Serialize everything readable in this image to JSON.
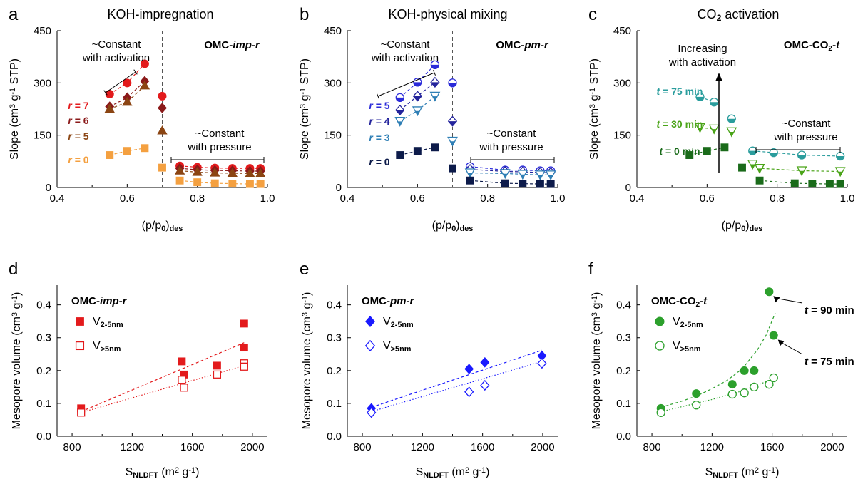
{
  "chart_data": [
    {
      "panel": "a",
      "type": "scatter",
      "title": "KOH-impregnation",
      "xlabel": "(p/p0)des",
      "ylabel": "Slope (cm3 g-1 STP)",
      "xlim": [
        0.4,
        1.0
      ],
      "ylim": [
        0,
        450
      ],
      "xticks": [
        "0.4",
        "0.6",
        "0.8",
        "1.0"
      ],
      "yticks": [
        "0",
        "150",
        "300",
        "450"
      ],
      "divider_x": 0.7,
      "tag": "OMC-imp-r",
      "annotations": [
        "~Constant",
        "with activation",
        "~Constant",
        "with pressure"
      ],
      "series": [
        {
          "name": "r = 7",
          "color": "#e31a1c",
          "marker": "circle",
          "x": [
            0.55,
            0.6,
            0.65,
            0.7,
            0.75,
            0.8,
            0.85,
            0.9,
            0.95,
            0.98
          ],
          "y": [
            268,
            300,
            355,
            262,
            62,
            58,
            56,
            55,
            55,
            55
          ]
        },
        {
          "name": "r = 6",
          "color": "#8b1a1a",
          "marker": "diamond",
          "x": [
            0.55,
            0.6,
            0.65,
            0.7,
            0.75,
            0.8,
            0.85,
            0.9,
            0.95,
            0.98
          ],
          "y": [
            232,
            258,
            305,
            228,
            55,
            51,
            49,
            48,
            47,
            47
          ]
        },
        {
          "name": "r = 5",
          "color": "#8b4513",
          "marker": "triangle",
          "x": [
            0.55,
            0.6,
            0.65,
            0.7,
            0.75,
            0.8,
            0.85,
            0.9,
            0.95,
            0.98
          ],
          "y": [
            225,
            245,
            292,
            163,
            48,
            44,
            42,
            41,
            40,
            40
          ]
        },
        {
          "name": "r = 0",
          "color": "#f4a040",
          "marker": "square",
          "x": [
            0.55,
            0.6,
            0.65,
            0.7,
            0.75,
            0.8,
            0.85,
            0.9,
            0.95,
            0.98
          ],
          "y": [
            93,
            105,
            113,
            57,
            20,
            15,
            12,
            11,
            10,
            10
          ]
        }
      ]
    },
    {
      "panel": "b",
      "type": "scatter",
      "title": "KOH-physical mixing",
      "xlabel": "(p/p0)des",
      "ylabel": "Slope (cm3 g-1 STP)",
      "xlim": [
        0.4,
        1.0
      ],
      "ylim": [
        0,
        450
      ],
      "xticks": [
        "0.4",
        "0.6",
        "0.8",
        "1.0"
      ],
      "yticks": [
        "0",
        "150",
        "300",
        "450"
      ],
      "divider_x": 0.7,
      "tag": "OMC-pm-r",
      "annotations": [
        "~Constant",
        "with activation",
        "~Constant",
        "with pressure"
      ],
      "series": [
        {
          "name": "r = 5",
          "color": "#2b2bd9",
          "marker": "half-circle",
          "x": [
            0.55,
            0.6,
            0.65,
            0.7,
            0.75,
            0.85,
            0.9,
            0.95,
            0.98
          ],
          "y": [
            258,
            302,
            352,
            300,
            60,
            50,
            50,
            48,
            48
          ]
        },
        {
          "name": "r = 4",
          "color": "#24249c",
          "marker": "half-diamond",
          "x": [
            0.55,
            0.6,
            0.65,
            0.7,
            0.75,
            0.85,
            0.9,
            0.95,
            0.98
          ],
          "y": [
            222,
            262,
            302,
            190,
            52,
            46,
            45,
            43,
            43
          ]
        },
        {
          "name": "r = 3",
          "color": "#2f7fb5",
          "marker": "half-triangle",
          "x": [
            0.55,
            0.6,
            0.65,
            0.7,
            0.75,
            0.85,
            0.9,
            0.95,
            0.98
          ],
          "y": [
            190,
            220,
            262,
            133,
            42,
            40,
            38,
            36,
            36
          ]
        },
        {
          "name": "r = 0",
          "color": "#0d1b4a",
          "marker": "square",
          "x": [
            0.55,
            0.6,
            0.65,
            0.7,
            0.75,
            0.85,
            0.9,
            0.95,
            0.98
          ],
          "y": [
            93,
            105,
            115,
            55,
            20,
            12,
            11,
            10,
            10
          ]
        }
      ]
    },
    {
      "panel": "c",
      "type": "scatter",
      "title": "CO2 activation",
      "xlabel": "(p/p0)des",
      "ylabel": "Slope (cm3 g-1 STP)",
      "xlim": [
        0.4,
        1.0
      ],
      "ylim": [
        0,
        450
      ],
      "xticks": [
        "0.4",
        "0.6",
        "0.8",
        "1.0"
      ],
      "yticks": [
        "0",
        "150",
        "300",
        "450"
      ],
      "divider_x": 0.7,
      "tag": "OMC-CO2-t",
      "annotations": [
        "Increasing",
        "with activation",
        "~Constant",
        "with pressure"
      ],
      "series": [
        {
          "name": "t = 75 min",
          "color": "#2a9d9d",
          "marker": "half-circle",
          "x": [
            0.58,
            0.62,
            0.67,
            0.73,
            0.79,
            0.87,
            0.98
          ],
          "y": [
            260,
            245,
            197,
            105,
            100,
            93,
            90
          ]
        },
        {
          "name": "t = 30 min",
          "color": "#4aa418",
          "marker": "half-triangle",
          "x": [
            0.58,
            0.62,
            0.67,
            0.73,
            0.75,
            0.87,
            0.98
          ],
          "y": [
            172,
            168,
            160,
            67,
            55,
            48,
            46
          ]
        },
        {
          "name": "t = 0 min",
          "color": "#1a6b1a",
          "marker": "square",
          "x": [
            0.55,
            0.6,
            0.65,
            0.7,
            0.75,
            0.85,
            0.9,
            0.95,
            0.98
          ],
          "y": [
            93,
            105,
            115,
            57,
            20,
            12,
            11,
            10,
            10
          ]
        }
      ]
    },
    {
      "panel": "d",
      "type": "scatter",
      "xlabel": "SNLDFT (m2 g-1)",
      "ylabel": "Mesopore volume (cm3 g-1)",
      "xlim": [
        700,
        2100
      ],
      "ylim": [
        0,
        0.46
      ],
      "xticks": [
        "800",
        "1200",
        "1600",
        "2000"
      ],
      "yticks": [
        "0.0",
        "0.1",
        "0.2",
        "0.3",
        "0.4"
      ],
      "tag": "OMC-imp-r",
      "series": [
        {
          "name": "V2-5nm",
          "color": "#e31a1c",
          "marker": "square",
          "fill": "filled",
          "x": [
            860,
            1530,
            1545,
            1765,
            1945,
            1945
          ],
          "y": [
            0.085,
            0.228,
            0.188,
            0.215,
            0.343,
            0.27
          ],
          "fit": {
            "style": "dashed",
            "x": [
              860,
              1945
            ],
            "y": [
              0.075,
              0.285
            ]
          }
        },
        {
          "name": "V>5nm",
          "color": "#e31a1c",
          "marker": "square",
          "fill": "open",
          "x": [
            860,
            1530,
            1545,
            1765,
            1945,
            1945
          ],
          "y": [
            0.072,
            0.172,
            0.148,
            0.188,
            0.222,
            0.212
          ],
          "fit": {
            "style": "dotted",
            "x": [
              860,
              1945
            ],
            "y": [
              0.072,
              0.215
            ]
          }
        }
      ]
    },
    {
      "panel": "e",
      "type": "scatter",
      "xlabel": "SNLDFT (m2 g-1)",
      "ylabel": "Mesopore volume (cm3 g-1)",
      "xlim": [
        700,
        2100
      ],
      "ylim": [
        0,
        0.46
      ],
      "xticks": [
        "800",
        "1200",
        "1600",
        "2000"
      ],
      "yticks": [
        "0.0",
        "0.1",
        "0.2",
        "0.3",
        "0.4"
      ],
      "tag": "OMC-pm-r",
      "series": [
        {
          "name": "V2-5nm",
          "color": "#1a1aff",
          "marker": "diamond",
          "fill": "filled",
          "x": [
            860,
            1510,
            1615,
            1995
          ],
          "y": [
            0.085,
            0.205,
            0.225,
            0.245
          ],
          "fit": {
            "style": "dashed",
            "x": [
              860,
              1995
            ],
            "y": [
              0.088,
              0.262
            ]
          }
        },
        {
          "name": "V>5nm",
          "color": "#1a1aff",
          "marker": "diamond",
          "fill": "open",
          "x": [
            860,
            1510,
            1615,
            1995
          ],
          "y": [
            0.072,
            0.135,
            0.155,
            0.222
          ],
          "fit": {
            "style": "dotted",
            "x": [
              860,
              1995
            ],
            "y": [
              0.075,
              0.228
            ]
          }
        }
      ]
    },
    {
      "panel": "f",
      "type": "scatter",
      "xlabel": "SNLDFT (m2 g-1)",
      "ylabel": "Mesopore volume (cm3 g-1)",
      "xlim": [
        700,
        2100
      ],
      "ylim": [
        0,
        0.46
      ],
      "xticks": [
        "800",
        "1200",
        "1600",
        "2000"
      ],
      "yticks": [
        "0.0",
        "0.1",
        "0.2",
        "0.3",
        "0.4"
      ],
      "tag": "OMC-CO2-t",
      "annotations": [
        "t = 90 min",
        "t = 75 min"
      ],
      "series": [
        {
          "name": "V2-5nm",
          "color": "#2ca02c",
          "marker": "circle",
          "fill": "filled",
          "x": [
            860,
            1095,
            1335,
            1415,
            1480,
            1580,
            1610
          ],
          "y": [
            0.085,
            0.13,
            0.158,
            0.2,
            0.2,
            0.44,
            0.307
          ],
          "fit": {
            "style": "dashed",
            "x": [
              860,
              1000,
              1100,
              1200,
              1300,
              1400,
              1500,
              1560,
              1620
            ],
            "y": [
              0.088,
              0.107,
              0.123,
              0.145,
              0.17,
              0.205,
              0.262,
              0.308,
              0.375
            ]
          }
        },
        {
          "name": "V>5nm",
          "color": "#2ca02c",
          "marker": "circle",
          "fill": "open",
          "x": [
            860,
            1095,
            1335,
            1415,
            1480,
            1580,
            1610
          ],
          "y": [
            0.072,
            0.095,
            0.128,
            0.132,
            0.15,
            0.158,
            0.178
          ],
          "fit": {
            "style": "dotted",
            "x": [
              860,
              1000,
              1200,
              1400,
              1610
            ],
            "y": [
              0.075,
              0.09,
              0.112,
              0.138,
              0.175
            ]
          }
        }
      ]
    }
  ]
}
